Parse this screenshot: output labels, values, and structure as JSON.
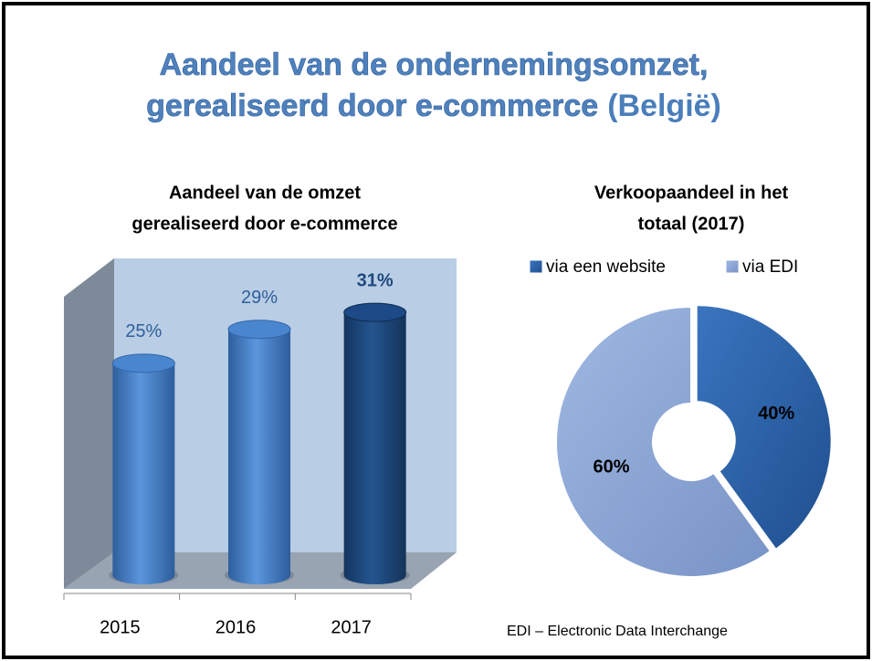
{
  "title": [
    "Aandeel van de ondernemingsomzet,",
    "gerealiseerd door e-commerce",
    "(België)"
  ],
  "chart_data": [
    {
      "type": "bar",
      "title": [
        "Aandeel van de omzet",
        "gerealiseerd door e-commerce"
      ],
      "categories": [
        "2015",
        "2016",
        "2017"
      ],
      "values": [
        25,
        29,
        31
      ],
      "value_labels": [
        "25%",
        "29%",
        "31%"
      ],
      "colors": [
        "#4a86cf",
        "#4a86cf",
        "#1d4a86"
      ],
      "ylim": [
        0,
        35
      ]
    },
    {
      "type": "pie",
      "title": [
        "Verkoopaandeel in het",
        "totaal (2017)"
      ],
      "categories": [
        "via een website",
        "via EDI"
      ],
      "values": [
        40,
        60
      ],
      "value_labels": [
        "40%",
        "60%"
      ],
      "colors": [
        "#2e64a8",
        "#8eaadb"
      ],
      "legend": "top"
    }
  ],
  "footnote": "EDI – Electronic Data Interchange"
}
